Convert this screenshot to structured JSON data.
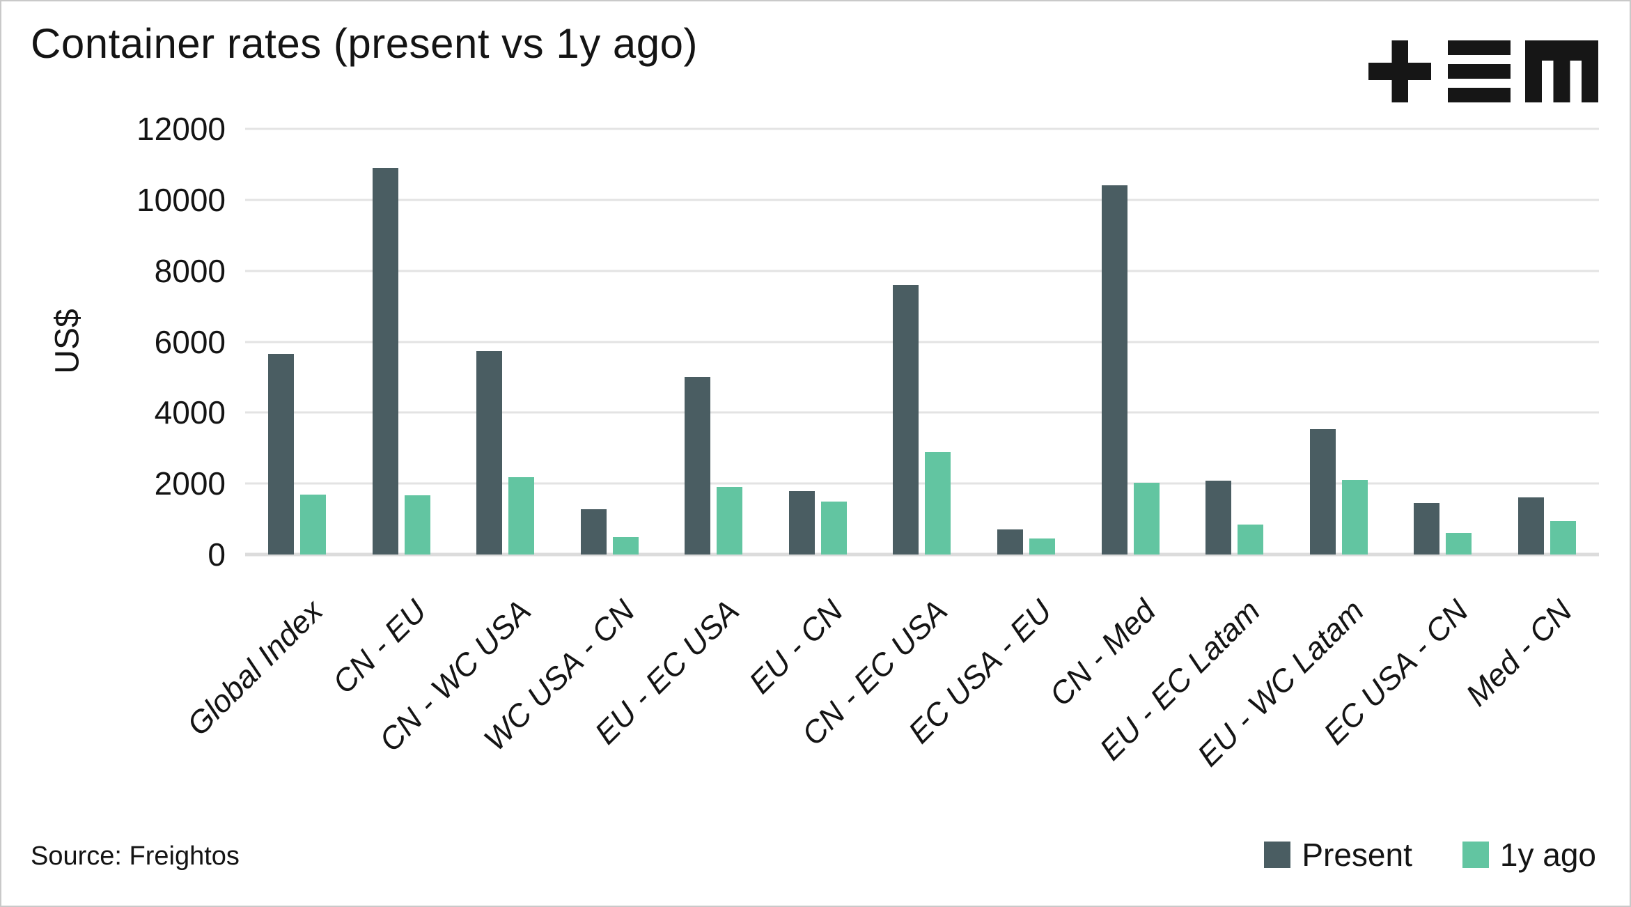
{
  "title": "Container rates (present vs 1y ago)",
  "source": "Source: Freightos",
  "logo": {
    "name": "tem-logo",
    "color": "#161616"
  },
  "colors": {
    "present": "#4a5d62",
    "one_year_ago": "#62c5a1",
    "gridline": "#e3e3e3",
    "text": "#141414"
  },
  "chart_data": {
    "type": "bar",
    "title": "Container rates (present vs 1y ago)",
    "xlabel": "",
    "ylabel": "US$",
    "ylim": [
      0,
      12000
    ],
    "yticks": [
      0,
      2000,
      4000,
      6000,
      8000,
      10000,
      12000
    ],
    "grid": true,
    "legend_position": "bottom-right",
    "categories": [
      "Global Index",
      "CN - EU",
      "CN - WC USA",
      "WC USA - CN",
      "EU - EC USA",
      "EU - CN",
      "CN - EC USA",
      "EC USA - EU",
      "CN - Med",
      "EU - EC Latam",
      "EU - WC Latam",
      "EC USA - CN",
      "Med - CN"
    ],
    "series": [
      {
        "name": "Present",
        "color": "#4a5d62",
        "values": [
          5650,
          10900,
          5730,
          1280,
          5000,
          1780,
          7610,
          710,
          10410,
          2090,
          3530,
          1450,
          1620
        ]
      },
      {
        "name": "1y ago",
        "color": "#62c5a1",
        "values": [
          1690,
          1670,
          2190,
          500,
          1900,
          1490,
          2880,
          450,
          2030,
          850,
          2100,
          600,
          940
        ]
      }
    ]
  }
}
